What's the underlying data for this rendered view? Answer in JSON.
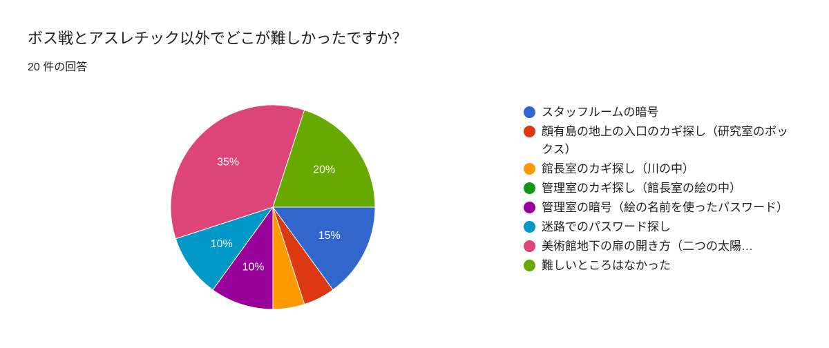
{
  "chart_data": {
    "type": "pie",
    "title": "ボス戦とアスレチック以外でどこが難しかったですか？",
    "subtitle": "20 件の回答",
    "categories": [
      "スタッフルームの暗号",
      "顔有島の地上の入口のカギ探し（研究室のボックス）",
      "館長室のカギ探し（川の中）",
      "管理室のカギ探し（館長室の絵の中）",
      "管理室の暗号（絵の名前を使ったパスワード）",
      "迷路でのパスワード探し",
      "美術館地下の扉の開き方（二つの太陽…",
      "難しいところはなかった"
    ],
    "values": [
      15,
      5,
      5,
      0,
      10,
      10,
      35,
      20
    ],
    "value_labels": [
      "15%",
      null,
      null,
      null,
      "10%",
      "10%",
      "35%",
      "20%"
    ],
    "colors": [
      "#3366cc",
      "#dc3912",
      "#ff9900",
      "#109618",
      "#990099",
      "#0099c6",
      "#dd4477",
      "#66aa00"
    ]
  }
}
